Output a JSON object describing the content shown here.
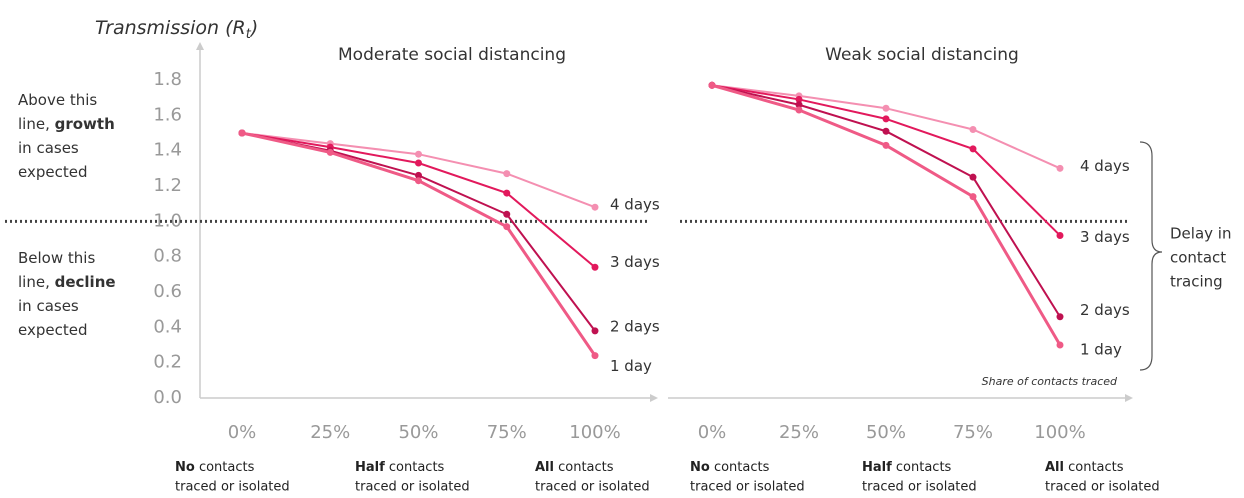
{
  "chart_data": [
    {
      "type": "line",
      "title": "Moderate social distancing",
      "y_label": [
        "Transmission (R",
        "t",
        ")"
      ],
      "categories": [
        "0%",
        "25%",
        "50%",
        "75%",
        "100%"
      ],
      "series": [
        {
          "name": "4 days",
          "color": "#f48fb1",
          "values": [
            1.5,
            1.44,
            1.38,
            1.27,
            1.08
          ]
        },
        {
          "name": "3 days",
          "color": "#e2195c",
          "values": [
            1.5,
            1.42,
            1.33,
            1.16,
            0.74
          ]
        },
        {
          "name": "2 days",
          "color": "#bf1150",
          "values": [
            1.5,
            1.4,
            1.26,
            1.04,
            0.38
          ]
        },
        {
          "name": "1 day",
          "color": "#ef5a86",
          "values": [
            1.5,
            1.39,
            1.23,
            0.97,
            0.24
          ]
        }
      ],
      "ylim": [
        0,
        1.8
      ],
      "yticks": [
        {
          "value": 0,
          "label": "0.0"
        },
        0.2,
        0.4,
        0.6,
        0.8,
        {
          "value": 1,
          "label": "1.0"
        },
        1.2,
        1.4,
        1.6,
        1.8
      ],
      "reference_line": 1,
      "annotations": {
        "above": [
          {
            "text": "Above this"
          },
          {
            "text": "line, ",
            "bold": "growth"
          },
          {
            "text": "in cases"
          },
          {
            "text": "expected"
          }
        ],
        "below": [
          {
            "text": "Below this"
          },
          {
            "text": "line, ",
            "bold": "decline"
          },
          {
            "text": "in cases"
          },
          {
            "text": "expected"
          }
        ]
      },
      "x_notes": [
        {
          "bold": "No",
          "text": " contacts",
          "line2": "traced or isolated"
        },
        {
          "bold": "Half",
          "text": " contacts",
          "line2": "traced or isolated"
        },
        {
          "bold": "All",
          "text": " contacts",
          "line2": "traced or isolated"
        }
      ]
    },
    {
      "type": "line",
      "title": "Weak social distancing",
      "categories": [
        "0%",
        "25%",
        "50%",
        "75%",
        "100%"
      ],
      "series": [
        {
          "name": "4 days",
          "color": "#f48fb1",
          "values": [
            1.77,
            1.71,
            1.64,
            1.52,
            1.3
          ]
        },
        {
          "name": "3 days",
          "color": "#e2195c",
          "values": [
            1.77,
            1.69,
            1.58,
            1.41,
            0.92
          ]
        },
        {
          "name": "2 days",
          "color": "#bf1150",
          "values": [
            1.77,
            1.66,
            1.51,
            1.25,
            0.46
          ]
        },
        {
          "name": "1 day",
          "color": "#ef5a86",
          "values": [
            1.77,
            1.63,
            1.43,
            1.14,
            0.3
          ]
        }
      ],
      "ylim": [
        0,
        1.8
      ],
      "reference_line": 1,
      "x_label": "Share of contacts traced",
      "legend_title": [
        "Delay in",
        "contact",
        "tracing"
      ],
      "x_notes": [
        {
          "bold": "No",
          "text": " contacts",
          "line2": "traced or isolated"
        },
        {
          "bold": "Half",
          "text": " contacts",
          "line2": "traced or isolated"
        },
        {
          "bold": "All",
          "text": " contacts",
          "line2": "traced or isolated"
        }
      ]
    }
  ]
}
